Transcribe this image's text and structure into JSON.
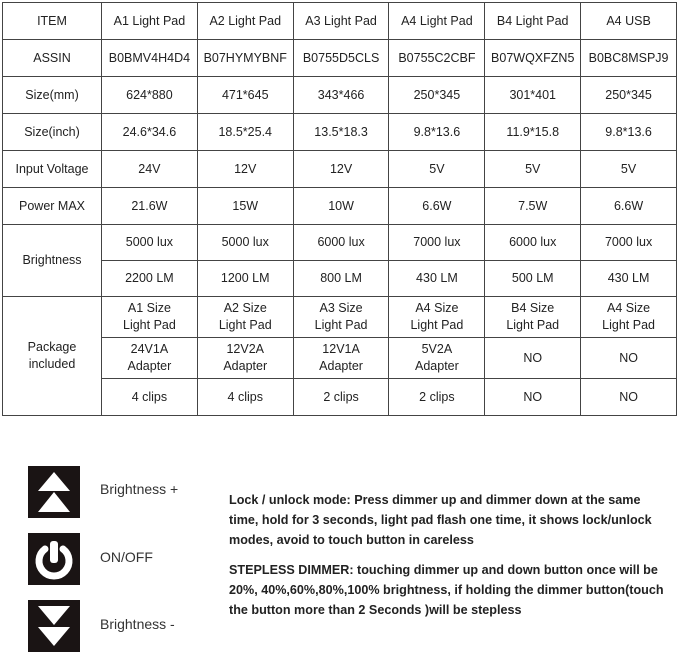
{
  "table": {
    "header": [
      "ITEM",
      "A1 Light Pad",
      "A2 Light Pad",
      "A3 Light Pad",
      "A4 Light Pad",
      "B4 Light Pad",
      "A4  USB"
    ],
    "rows": [
      {
        "label": "ASSIN",
        "values": [
          "B0BMV4H4D4",
          "B07HYMYBNF",
          "B0755D5CLS",
          "B0755C2CBF",
          "B07WQXFZN5",
          "B0BC8MSPJ9"
        ]
      },
      {
        "label": "Size(mm)",
        "values": [
          "624*880",
          "471*645",
          "343*466",
          "250*345",
          "301*401",
          "250*345"
        ]
      },
      {
        "label": "Size(inch)",
        "values": [
          "24.6*34.6",
          "18.5*25.4",
          "13.5*18.3",
          "9.8*13.6",
          "11.9*15.8",
          "9.8*13.6"
        ]
      },
      {
        "label": "Input Voltage",
        "values": [
          "24V",
          "12V",
          "12V",
          "5V",
          "5V",
          "5V"
        ]
      },
      {
        "label": "Power MAX",
        "values": [
          "21.6W",
          "15W",
          "10W",
          "6.6W",
          "7.5W",
          "6.6W"
        ]
      }
    ],
    "brightness": {
      "label": "Brightness",
      "lux": [
        "5000 lux",
        "5000 lux",
        "6000 lux",
        "7000 lux",
        "6000 lux",
        "7000 lux"
      ],
      "lm": [
        "2200 LM",
        "1200 LM",
        "800 LM",
        "430 LM",
        "500 LM",
        "430 LM"
      ]
    },
    "package": {
      "label": "Package included",
      "pad": [
        [
          "A1 Size",
          "Light Pad"
        ],
        [
          "A2 Size",
          "Light Pad"
        ],
        [
          "A3 Size",
          "Light Pad"
        ],
        [
          "A4 Size",
          "Light Pad"
        ],
        [
          "B4 Size",
          "Light Pad"
        ],
        [
          "A4 Size",
          "Light Pad"
        ]
      ],
      "adapter": [
        [
          "24V1A",
          "Adapter"
        ],
        [
          "12V2A",
          "Adapter"
        ],
        [
          "12V1A",
          "Adapter"
        ],
        [
          "5V2A",
          "Adapter"
        ],
        [
          "NO",
          ""
        ],
        [
          "NO",
          ""
        ]
      ],
      "clips": [
        "4 clips",
        "4 clips",
        "2 clips",
        "2 clips",
        "NO",
        "NO"
      ]
    }
  },
  "controls": [
    {
      "icon": "brightness-up-icon",
      "label": "Brightness +"
    },
    {
      "icon": "power-icon",
      "label": "ON/OFF"
    },
    {
      "icon": "brightness-down-icon",
      "label": "Brightness -"
    }
  ],
  "instructions": {
    "lock": "Lock / unlock mode: Press dimmer up and dimmer down at the same time, hold for 3 seconds, light pad flash one time, it shows lock/unlock modes, avoid to touch button in careless",
    "stepless": "STEPLESS DIMMER: touching dimmer up and down button once will be 20%, 40%,60%,80%,100% brightness, if holding the dimmer button(touch the button more than 2 Seconds )will be stepless"
  }
}
